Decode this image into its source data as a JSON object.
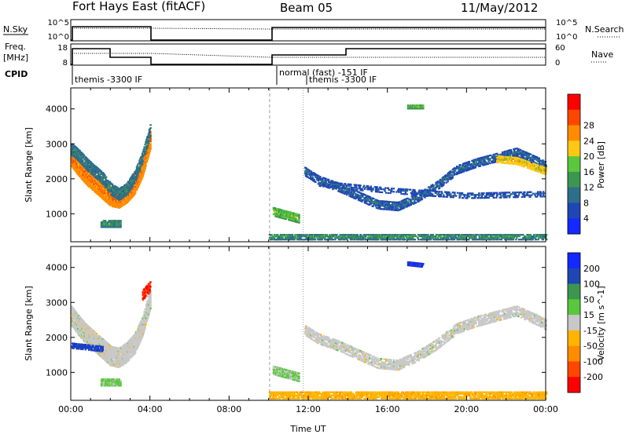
{
  "header": {
    "site": "Fort Hays East (fitACF)",
    "beam": "Beam 05",
    "date": "11/May/2012"
  },
  "status_panels": {
    "nsky_label": "N.Sky",
    "nsky_ticks": [
      "10^5",
      "10^0"
    ],
    "nsearch_label": "N.Search",
    "nsearch_ticks": [
      "10^5",
      "10^0"
    ],
    "freq_label_1": "Freq.",
    "freq_label_2": "[MHz]",
    "freq_ticks": [
      "18",
      "8"
    ],
    "nave_label": "Nave",
    "nave_ticks": [
      "60",
      "0"
    ],
    "cpid_label": "CPID",
    "cpid_entries": [
      "themis -3300 IF",
      "normal (fast) -151 IF",
      "themis -3300 IF"
    ]
  },
  "colors": {
    "power": [
      "#1428ff",
      "#1e46b4",
      "#2d6e8c",
      "#3c9650",
      "#5ac83c",
      "#ffc814",
      "#ff8c00",
      "#ff4600",
      "#ff0000"
    ],
    "velocity": [
      "#1428ff",
      "#1e46b4",
      "#3c9650",
      "#5ac83c",
      "#c8c8c8",
      "#ffb400",
      "#ff8c00",
      "#ff4600",
      "#ff0000"
    ]
  },
  "chart_data": [
    {
      "type": "heatmap",
      "name": "power",
      "xlabel": "",
      "ylabel": "Slant Range [km]",
      "xlim": [
        0,
        24
      ],
      "ylim": [
        200,
        4600
      ],
      "yticks": [
        1000,
        2000,
        3000,
        4000
      ],
      "colorbar_label": "Power [dB]",
      "colorbar_ticks": [
        "4",
        "8",
        "12",
        "16",
        "20",
        "24",
        "28"
      ],
      "colorbar_range": [
        0,
        32
      ],
      "bands": [
        {
          "x": [
            0.0,
            0.4,
            0.8,
            1.2,
            1.6,
            2.0,
            2.4,
            2.8,
            3.2,
            3.6,
            4.0
          ],
          "range": [
            2600,
            2300,
            2050,
            1850,
            1650,
            1450,
            1400,
            1550,
            1800,
            2300,
            3100
          ],
          "width": 500,
          "value": 22,
          "density": 0.9
        },
        {
          "x": [
            0.0,
            0.4,
            0.8,
            1.2,
            1.6,
            2.0,
            2.4,
            2.8,
            3.2,
            3.6,
            4.0
          ],
          "range": [
            2850,
            2650,
            2400,
            2200,
            2000,
            1700,
            1550,
            1700,
            2050,
            2600,
            3400
          ],
          "width": 350,
          "value": 8,
          "density": 0.7
        },
        {
          "x": [
            1.5,
            2.5
          ],
          "range": [
            700,
            700
          ],
          "width": 200,
          "value": 10,
          "density": 0.8
        },
        {
          "x": [
            10.2,
            11.5
          ],
          "range": [
            1050,
            850
          ],
          "width": 250,
          "value": 14,
          "density": 0.8
        },
        {
          "x": [
            11.8,
            12.5,
            13.5,
            14.5,
            15.5,
            16.5,
            17.5,
            18.5,
            19.5,
            20.5,
            21.5,
            22.5,
            23.5,
            24.0
          ],
          "range": [
            2200,
            1950,
            1750,
            1500,
            1250,
            1200,
            1450,
            1800,
            2250,
            2450,
            2600,
            2750,
            2500,
            2350
          ],
          "width": 250,
          "value": 6,
          "density": 0.55
        },
        {
          "x": [
            21.5,
            22.5,
            23.5,
            24.0
          ],
          "range": [
            2550,
            2500,
            2300,
            2200
          ],
          "width": 200,
          "value": 18,
          "density": 0.7
        },
        {
          "x": [
            17.0,
            17.8
          ],
          "range": [
            4050,
            4050
          ],
          "width": 120,
          "value": 14,
          "density": 0.8
        },
        {
          "x": [
            12.5,
            16.0,
            20.0,
            24.0
          ],
          "range": [
            1850,
            1650,
            1500,
            1550
          ],
          "width": 150,
          "value": 5,
          "density": 0.35
        },
        {
          "x": [
            10.0,
            24.0
          ],
          "range": [
            320,
            320
          ],
          "width": 150,
          "value": 10,
          "density": 0.6
        }
      ]
    },
    {
      "type": "heatmap",
      "name": "velocity",
      "xlabel": "Time UT",
      "ylabel": "Slant Range [km]",
      "xlim": [
        0,
        24
      ],
      "ylim": [
        200,
        4600
      ],
      "xticks": [
        "00:00",
        "04:00",
        "08:00",
        "12:00",
        "16:00",
        "20:00",
        "00:00"
      ],
      "yticks": [
        1000,
        2000,
        3000,
        4000
      ],
      "colorbar_label": "Velocity [m s^-1]",
      "colorbar_ticks": [
        "200",
        "100",
        "50",
        "15",
        "-15",
        "-50",
        "-100",
        "-200"
      ],
      "colorbar_range": [
        -250,
        250
      ],
      "bands": [
        {
          "x": [
            0.0,
            0.4,
            0.8,
            1.2,
            1.6,
            2.0,
            2.4,
            2.8,
            3.2,
            3.6,
            4.0
          ],
          "range": [
            2600,
            2300,
            2050,
            1850,
            1650,
            1450,
            1400,
            1550,
            1800,
            2300,
            3100
          ],
          "width": 550,
          "value": 0,
          "density": 0.85
        },
        {
          "x": [
            0.0,
            0.8,
            1.6
          ],
          "range": [
            1750,
            1700,
            1650
          ],
          "width": 150,
          "value": 180,
          "density": 0.6
        },
        {
          "x": [
            3.6,
            4.0
          ],
          "range": [
            3200,
            3450
          ],
          "width": 300,
          "value": -200,
          "density": 0.7
        },
        {
          "x": [
            1.5,
            2.5
          ],
          "range": [
            700,
            700
          ],
          "width": 200,
          "value": 40,
          "density": 0.8
        },
        {
          "x": [
            10.2,
            11.5
          ],
          "range": [
            1050,
            850
          ],
          "width": 250,
          "value": 40,
          "density": 0.8
        },
        {
          "x": [
            11.8,
            12.5,
            13.5,
            14.5,
            15.5,
            16.5,
            17.5,
            18.5,
            19.5,
            20.5,
            21.5,
            22.5,
            23.5,
            24.0
          ],
          "range": [
            2200,
            1950,
            1750,
            1500,
            1250,
            1200,
            1450,
            1800,
            2250,
            2450,
            2600,
            2750,
            2500,
            2350
          ],
          "width": 300,
          "value": 0,
          "density": 0.55
        },
        {
          "x": [
            17.0,
            17.8
          ],
          "range": [
            4100,
            4050
          ],
          "width": 120,
          "value": 200,
          "density": 0.8
        },
        {
          "x": [
            10.0,
            24.0
          ],
          "range": [
            320,
            320
          ],
          "width": 180,
          "value": -60,
          "density": 0.6
        }
      ]
    }
  ]
}
